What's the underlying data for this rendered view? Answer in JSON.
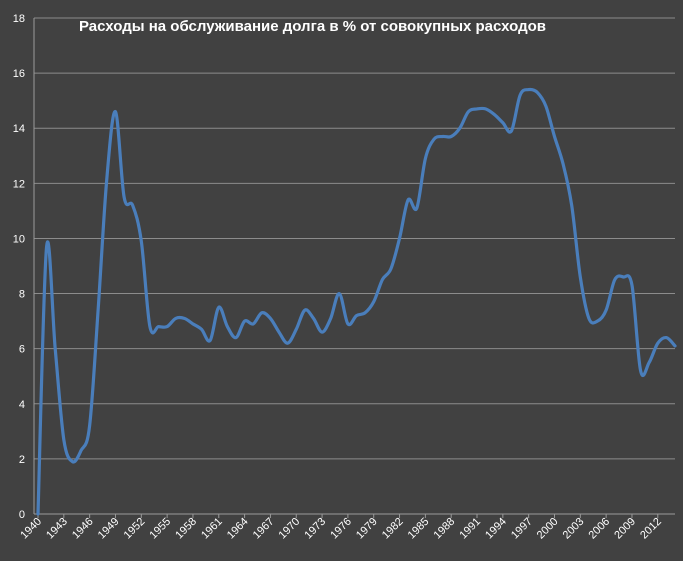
{
  "chart_data": {
    "type": "line",
    "title": "Расходы на обслуживание долга в % от совокупных расходов",
    "xlabel": "",
    "ylabel": "",
    "ylim": [
      0,
      18
    ],
    "yticks": [
      0,
      2,
      4,
      6,
      8,
      10,
      12,
      14,
      16,
      18
    ],
    "xticks": [
      "1940",
      "1943",
      "1946",
      "1949",
      "1952",
      "1955",
      "1958",
      "1961",
      "1964",
      "1967",
      "1970",
      "1973",
      "1976",
      "1979",
      "1982",
      "1985",
      "1988",
      "1991",
      "1994",
      "1997",
      "2000",
      "2003",
      "2006",
      "2009",
      "2012"
    ],
    "x_range": [
      1940,
      2014
    ],
    "grid": true,
    "legend": "none",
    "color": "#4a7ebb",
    "series": [
      {
        "name": "",
        "x": [
          1940,
          1941,
          1942,
          1943,
          1944,
          1945,
          1946,
          1947,
          1948,
          1949,
          1950,
          1951,
          1952,
          1953,
          1954,
          1955,
          1956,
          1957,
          1958,
          1959,
          1960,
          1961,
          1962,
          1963,
          1964,
          1965,
          1966,
          1967,
          1968,
          1969,
          1970,
          1971,
          1972,
          1973,
          1974,
          1975,
          1976,
          1977,
          1978,
          1979,
          1980,
          1981,
          1982,
          1983,
          1984,
          1985,
          1986,
          1987,
          1988,
          1989,
          1990,
          1991,
          1992,
          1993,
          1994,
          1995,
          1996,
          1997,
          1998,
          1999,
          2000,
          2001,
          2002,
          2003,
          2004,
          2005,
          2006,
          2007,
          2008,
          2009,
          2010,
          2011,
          2012,
          2013,
          2014
        ],
        "values": [
          0.0,
          9.7,
          6.0,
          2.7,
          1.9,
          2.3,
          3.2,
          7.5,
          12.2,
          14.6,
          11.5,
          11.2,
          9.9,
          6.8,
          6.8,
          6.8,
          7.1,
          7.1,
          6.9,
          6.7,
          6.3,
          7.5,
          6.8,
          6.4,
          7.0,
          6.9,
          7.3,
          7.1,
          6.6,
          6.2,
          6.7,
          7.4,
          7.1,
          6.6,
          7.1,
          8.0,
          6.9,
          7.2,
          7.3,
          7.7,
          8.5,
          8.9,
          10.0,
          11.4,
          11.1,
          12.9,
          13.6,
          13.7,
          13.7,
          14.0,
          14.6,
          14.7,
          14.7,
          14.5,
          14.2,
          13.9,
          15.2,
          15.4,
          15.3,
          14.8,
          13.7,
          12.7,
          11.2,
          8.6,
          7.1,
          7.0,
          7.4,
          8.5,
          8.6,
          8.3,
          5.2,
          5.5,
          6.2,
          6.4,
          6.1
        ]
      }
    ]
  }
}
